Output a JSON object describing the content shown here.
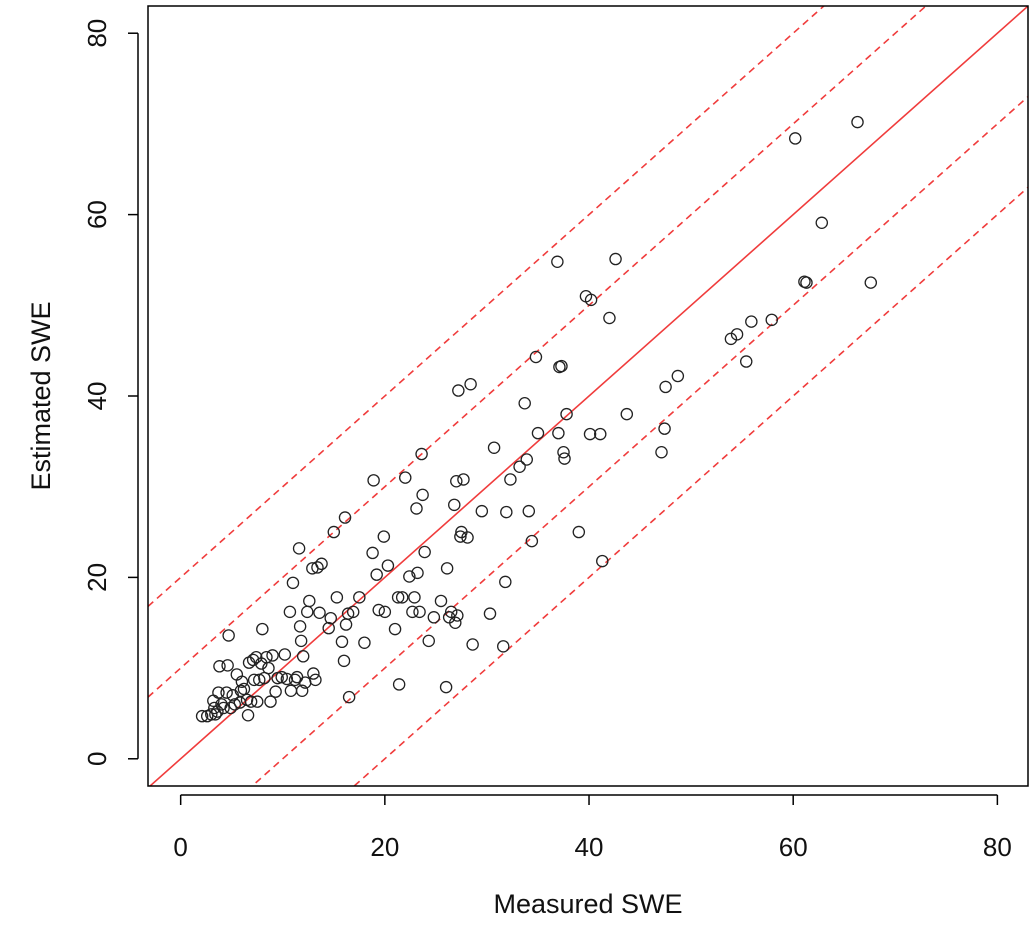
{
  "chart_data": {
    "type": "scatter",
    "title": "",
    "xlabel": "Measured SWE",
    "ylabel": "Estimated SWE",
    "xlim": [
      -3.2,
      83
    ],
    "ylim": [
      -3,
      83
    ],
    "xticks": [
      0,
      20,
      40,
      60,
      80
    ],
    "yticks": [
      0,
      20,
      40,
      60,
      80
    ],
    "x_tick_labels": [
      "0",
      "20",
      "40",
      "60",
      "80"
    ],
    "y_tick_labels": [
      "0",
      "20",
      "40",
      "60",
      "80"
    ],
    "grid": false,
    "legend": "none",
    "colors": {
      "points": "#222222",
      "lines": "#f03c3c"
    },
    "reference_lines": [
      {
        "style": "solid",
        "intercept": 0,
        "slope": 1
      },
      {
        "style": "dashed",
        "intercept": 20,
        "slope": 1
      },
      {
        "style": "dashed",
        "intercept": 10,
        "slope": 1
      },
      {
        "style": "dashed",
        "intercept": -10,
        "slope": 1
      },
      {
        "style": "dashed",
        "intercept": -20,
        "slope": 1
      }
    ],
    "points": [
      [
        2.1,
        4.7
      ],
      [
        2.6,
        4.7
      ],
      [
        3.0,
        4.9
      ],
      [
        3.3,
        5.6
      ],
      [
        3.4,
        4.9
      ],
      [
        3.2,
        6.4
      ],
      [
        3.6,
        5.2
      ],
      [
        3.7,
        7.3
      ],
      [
        3.8,
        10.2
      ],
      [
        4.0,
        6.0
      ],
      [
        4.2,
        5.6
      ],
      [
        4.5,
        7.3
      ],
      [
        4.6,
        10.3
      ],
      [
        4.7,
        13.6
      ],
      [
        4.9,
        5.6
      ],
      [
        5.1,
        7.0
      ],
      [
        5.3,
        6.0
      ],
      [
        5.5,
        9.3
      ],
      [
        5.8,
        6.2
      ],
      [
        5.9,
        7.5
      ],
      [
        6.0,
        8.5
      ],
      [
        6.2,
        7.7
      ],
      [
        6.5,
        6.5
      ],
      [
        6.6,
        4.8
      ],
      [
        6.7,
        10.6
      ],
      [
        6.9,
        6.3
      ],
      [
        7.1,
        10.9
      ],
      [
        7.2,
        8.7
      ],
      [
        7.4,
        11.2
      ],
      [
        7.5,
        6.3
      ],
      [
        7.7,
        8.7
      ],
      [
        7.9,
        10.5
      ],
      [
        8.0,
        14.3
      ],
      [
        8.2,
        8.9
      ],
      [
        8.4,
        11.2
      ],
      [
        8.6,
        10.0
      ],
      [
        8.8,
        6.3
      ],
      [
        9.0,
        11.4
      ],
      [
        9.3,
        7.4
      ],
      [
        9.5,
        8.9
      ],
      [
        9.9,
        9.0
      ],
      [
        10.2,
        11.5
      ],
      [
        10.4,
        8.8
      ],
      [
        10.7,
        16.2
      ],
      [
        10.8,
        7.5
      ],
      [
        11.0,
        19.4
      ],
      [
        11.2,
        8.7
      ],
      [
        11.4,
        9.0
      ],
      [
        11.6,
        23.2
      ],
      [
        11.7,
        14.6
      ],
      [
        11.8,
        13.0
      ],
      [
        11.9,
        7.5
      ],
      [
        12.0,
        11.3
      ],
      [
        12.2,
        8.4
      ],
      [
        12.4,
        16.2
      ],
      [
        12.6,
        17.4
      ],
      [
        12.9,
        21.0
      ],
      [
        13.0,
        9.4
      ],
      [
        13.2,
        8.7
      ],
      [
        13.4,
        21.1
      ],
      [
        13.6,
        16.1
      ],
      [
        13.8,
        21.5
      ],
      [
        14.5,
        14.4
      ],
      [
        14.7,
        15.5
      ],
      [
        15.0,
        25.0
      ],
      [
        15.3,
        17.8
      ],
      [
        15.8,
        12.9
      ],
      [
        16.0,
        10.8
      ],
      [
        16.1,
        26.6
      ],
      [
        16.2,
        14.8
      ],
      [
        16.4,
        16.0
      ],
      [
        16.5,
        6.8
      ],
      [
        16.9,
        16.2
      ],
      [
        17.5,
        17.8
      ],
      [
        18.0,
        12.8
      ],
      [
        18.8,
        22.7
      ],
      [
        18.9,
        30.7
      ],
      [
        19.2,
        20.3
      ],
      [
        19.4,
        16.4
      ],
      [
        19.9,
        24.5
      ],
      [
        20.0,
        16.2
      ],
      [
        20.3,
        21.3
      ],
      [
        21.0,
        14.3
      ],
      [
        21.3,
        17.8
      ],
      [
        21.4,
        8.2
      ],
      [
        21.7,
        17.8
      ],
      [
        22.0,
        31.0
      ],
      [
        22.4,
        20.1
      ],
      [
        22.7,
        16.2
      ],
      [
        22.9,
        17.8
      ],
      [
        23.1,
        27.6
      ],
      [
        23.2,
        20.5
      ],
      [
        23.4,
        16.2
      ],
      [
        23.6,
        33.6
      ],
      [
        23.7,
        29.1
      ],
      [
        23.9,
        22.8
      ],
      [
        24.3,
        13.0
      ],
      [
        24.8,
        15.6
      ],
      [
        25.5,
        17.4
      ],
      [
        26.0,
        7.9
      ],
      [
        26.1,
        21.0
      ],
      [
        26.3,
        15.6
      ],
      [
        26.5,
        16.2
      ],
      [
        26.8,
        28.0
      ],
      [
        26.9,
        15.0
      ],
      [
        27.0,
        30.6
      ],
      [
        27.1,
        15.8
      ],
      [
        27.2,
        40.6
      ],
      [
        27.4,
        24.5
      ],
      [
        27.5,
        25.0
      ],
      [
        27.7,
        30.8
      ],
      [
        28.1,
        24.4
      ],
      [
        28.4,
        41.3
      ],
      [
        28.6,
        12.6
      ],
      [
        29.5,
        27.3
      ],
      [
        30.3,
        16.0
      ],
      [
        30.7,
        34.3
      ],
      [
        31.6,
        12.4
      ],
      [
        31.8,
        19.5
      ],
      [
        31.9,
        27.2
      ],
      [
        32.3,
        30.8
      ],
      [
        33.2,
        32.2
      ],
      [
        33.7,
        39.2
      ],
      [
        33.9,
        33.0
      ],
      [
        34.1,
        27.3
      ],
      [
        34.4,
        24.0
      ],
      [
        34.8,
        44.3
      ],
      [
        35.0,
        35.9
      ],
      [
        36.9,
        54.8
      ],
      [
        37.0,
        35.9
      ],
      [
        37.1,
        43.2
      ],
      [
        37.3,
        43.3
      ],
      [
        37.5,
        33.8
      ],
      [
        37.6,
        33.1
      ],
      [
        37.8,
        38.0
      ],
      [
        39.0,
        25.0
      ],
      [
        39.7,
        51.0
      ],
      [
        40.1,
        35.8
      ],
      [
        40.2,
        50.6
      ],
      [
        41.1,
        35.8
      ],
      [
        41.3,
        21.8
      ],
      [
        42.0,
        48.6
      ],
      [
        42.6,
        55.1
      ],
      [
        43.7,
        38.0
      ],
      [
        47.1,
        33.8
      ],
      [
        47.4,
        36.4
      ],
      [
        47.5,
        41.0
      ],
      [
        48.7,
        42.2
      ],
      [
        53.9,
        46.3
      ],
      [
        54.5,
        46.8
      ],
      [
        55.4,
        43.8
      ],
      [
        55.9,
        48.2
      ],
      [
        57.9,
        48.4
      ],
      [
        60.2,
        68.4
      ],
      [
        61.1,
        52.6
      ],
      [
        61.3,
        52.5
      ],
      [
        62.8,
        59.1
      ],
      [
        66.3,
        70.2
      ],
      [
        67.6,
        52.5
      ]
    ]
  }
}
